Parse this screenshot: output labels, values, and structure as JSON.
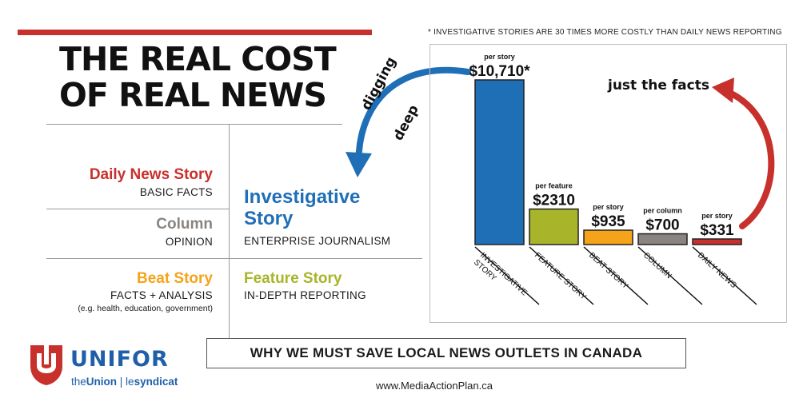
{
  "header": {
    "title_line1": "THE REAL COST",
    "title_line2": "OF REAL NEWS",
    "footnote": "* INVESTIGATIVE STORIES ARE 30 TIMES MORE COSTLY THAN DAILY NEWS REPORTING"
  },
  "story_types": {
    "daily": {
      "name": "Daily News Story",
      "desc": "BASIC FACTS",
      "color": "#c8302c"
    },
    "column": {
      "name": "Column",
      "desc": "OPINION",
      "color": "#8a8480"
    },
    "beat": {
      "name": "Beat Story",
      "desc": "FACTS + ANALYSIS",
      "note": "(e.g. health, education, government)",
      "color": "#f5a31a"
    },
    "investigative": {
      "name_line1": "Investigative",
      "name_line2": "Story",
      "desc": "ENTERPRISE JOURNALISM",
      "color": "#1f6fb7"
    },
    "feature": {
      "name": "Feature Story",
      "desc": "IN-DEPTH REPORTING",
      "color": "#a8b52a"
    }
  },
  "annotations": {
    "digging": "digging",
    "deep": "deep",
    "just_the_facts": "just the facts"
  },
  "chart_data": {
    "type": "bar",
    "categories": [
      "INVESTIGATIVE STORY",
      "FEATURE STORY",
      "BEAT STORY",
      "COLUMN",
      "DAILY NEWS"
    ],
    "values": [
      10710,
      2310,
      935,
      700,
      331
    ],
    "value_labels": [
      "$10,710*",
      "$2310",
      "$935",
      "$700",
      "$331"
    ],
    "unit_labels": [
      "per story",
      "per feature",
      "per story",
      "per column",
      "per story"
    ],
    "colors": [
      "#1f6fb7",
      "#a8b52a",
      "#f5a31a",
      "#8a8480",
      "#c8302c"
    ],
    "ylim": [
      0,
      10710
    ],
    "grid": false,
    "xlabel": "",
    "ylabel": ""
  },
  "banner": "WHY WE MUST SAVE LOCAL NEWS OUTLETS IN CANADA",
  "url": "www.MediaActionPlan.ca",
  "logo": {
    "wordmark": "UNIFOR",
    "tag_the": "the",
    "tag_union": "Union",
    "tag_sep": " | ",
    "tag_les": "le",
    "tag_syndicat": "syndicat",
    "brand_color": "#1f5fa9",
    "mark_color": "#c8302c"
  }
}
